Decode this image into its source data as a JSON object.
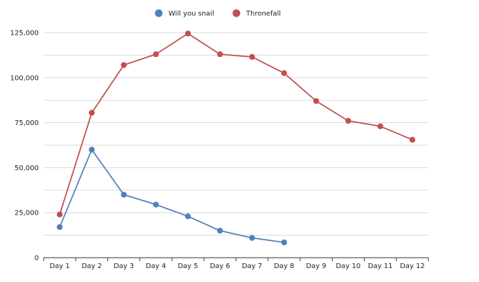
{
  "chart_data": {
    "type": "line",
    "title": "",
    "xlabel": "",
    "ylabel": "",
    "categories": [
      "Day 1",
      "Day 2",
      "Day 3",
      "Day 4",
      "Day 5",
      "Day 6",
      "Day 7",
      "Day 8",
      "Day 9",
      "Day 10",
      "Day 11",
      "Day 12"
    ],
    "ylim": [
      0,
      125000
    ],
    "y_ticks": [
      0,
      25000,
      50000,
      75000,
      100000,
      125000
    ],
    "y_tick_labels": [
      "0",
      "25,000",
      "50,000",
      "75,000",
      "100,000",
      "125,000"
    ],
    "minor_grid_step": 12500,
    "grid": true,
    "legend_position": "top-center",
    "series": [
      {
        "name": "Will you snail",
        "color": "#4f81bd",
        "values": [
          17000,
          60000,
          35000,
          29500,
          23000,
          15000,
          11000,
          8500,
          null,
          null,
          null,
          null
        ]
      },
      {
        "name": "Thronefall",
        "color": "#c0504d",
        "values": [
          24000,
          80500,
          107000,
          113000,
          124500,
          113000,
          111500,
          102500,
          87000,
          76000,
          73000,
          65500
        ]
      }
    ]
  }
}
